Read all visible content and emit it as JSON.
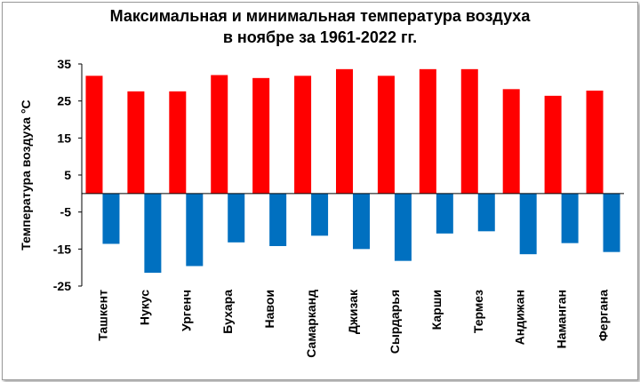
{
  "chart_data": {
    "type": "bar",
    "title_line1": "Максимальная и минимальная температура воздуха",
    "title_line2": "в ноябре за 1961-2022 гг.",
    "xlabel": "",
    "ylabel": "Температура воздуха °С",
    "ylim": [
      -25,
      35
    ],
    "yticks": [
      35,
      25,
      15,
      5,
      -5,
      -15,
      -25
    ],
    "grid": false,
    "legend": "none",
    "categories": [
      "Ташкент",
      "Нукус",
      "Ургенч",
      "Бухара",
      "Навои",
      "Самарканд",
      "Джизак",
      "Сырдарья",
      "Карши",
      "Термез",
      "Андижан",
      "Наманган",
      "Фергана"
    ],
    "series": [
      {
        "color": "#ff0000",
        "values": [
          31.8,
          27.6,
          27.6,
          32.0,
          31.2,
          31.8,
          33.6,
          31.8,
          33.6,
          33.6,
          28.2,
          26.4,
          27.8
        ]
      },
      {
        "color": "#0070c0",
        "values": [
          -13.6,
          -21.4,
          -19.6,
          -13.2,
          -14.2,
          -11.4,
          -15.0,
          -18.2,
          -10.8,
          -10.2,
          -16.4,
          -13.4,
          -15.8
        ]
      }
    ]
  }
}
